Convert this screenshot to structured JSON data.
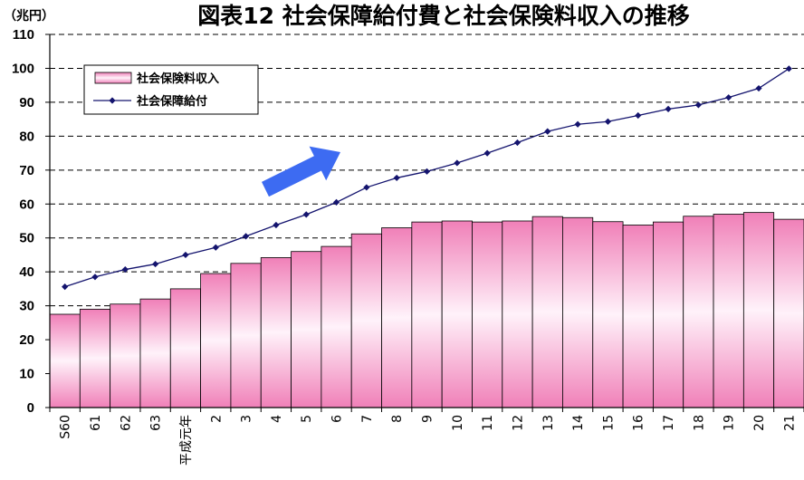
{
  "chart_data": {
    "type": "bar",
    "title": "図表12 社会保障給付費と社会保険料収入の推移",
    "unit_label": "（兆円）",
    "ylim": [
      0,
      110
    ],
    "yticks": [
      0,
      10,
      20,
      30,
      40,
      50,
      60,
      70,
      80,
      90,
      100,
      110
    ],
    "grid": "dashed horizontal",
    "legend_position": "top-left",
    "categories": [
      "S60",
      "61",
      "62",
      "63",
      "平成元年",
      "2",
      "3",
      "4",
      "5",
      "6",
      "7",
      "8",
      "9",
      "10",
      "11",
      "12",
      "13",
      "14",
      "15",
      "16",
      "17",
      "18",
      "19",
      "20",
      "21"
    ],
    "series": [
      {
        "name": "社会保険料収入",
        "type": "bar",
        "values": [
          27.5,
          29.0,
          30.5,
          32.0,
          35.0,
          39.5,
          42.5,
          44.2,
          46.0,
          47.5,
          51.2,
          53.0,
          54.7,
          55.0,
          54.7,
          55.0,
          56.3,
          56.0,
          54.8,
          53.8,
          54.7,
          56.4,
          57.0,
          57.5,
          55.5
        ]
      },
      {
        "name": "社会保障給付",
        "type": "line",
        "values": [
          35.6,
          38.5,
          40.7,
          42.3,
          45.0,
          47.2,
          50.5,
          53.8,
          56.9,
          60.5,
          64.9,
          67.7,
          69.6,
          72.1,
          75.0,
          78.1,
          81.4,
          83.5,
          84.3,
          86.1,
          88.0,
          89.2,
          91.4,
          94.1,
          99.9
        ]
      }
    ]
  },
  "colors": {
    "bar_dark": "#F080B8",
    "bar_light": "#FFF2FA",
    "line": "#14146E",
    "grid": "#000000",
    "arrow": "#3D6BF2"
  },
  "decorations": {
    "trend_arrow": "arrow-up-right-icon"
  }
}
